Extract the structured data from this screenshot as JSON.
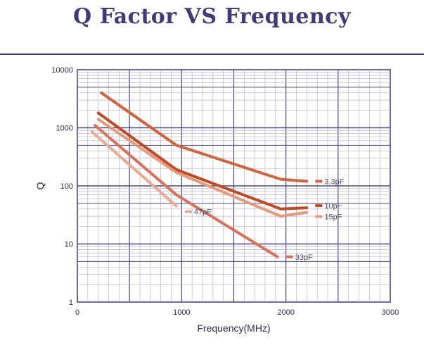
{
  "title": "Q Factor VS Frequency",
  "colors": {
    "title": "#3f3a7a",
    "grid_major": "#4a4590",
    "grid_minor": "#b3b0d6"
  },
  "chart_data": {
    "type": "line",
    "xlabel": "Frequency(MHz)",
    "ylabel": "Q",
    "x_scale": "linear",
    "y_scale": "log",
    "xlim": [
      0,
      3000
    ],
    "ylim": [
      1,
      10000
    ],
    "x_ticks": [
      "0",
      "1000",
      "2000",
      "3000"
    ],
    "y_ticks": [
      "1",
      "10",
      "100",
      "1000",
      "10000"
    ],
    "grid": true,
    "series": [
      {
        "name": "3.3pF",
        "color": "#d2643a",
        "x": [
          230,
          950,
          1950,
          2200
        ],
        "y": [
          4000,
          500,
          130,
          120
        ]
      },
      {
        "name": "10pF",
        "color": "#c24a22",
        "x": [
          200,
          950,
          1950,
          2200
        ],
        "y": [
          1800,
          190,
          40,
          42
        ]
      },
      {
        "name": "15pF",
        "color": "#e69a7a",
        "x": [
          200,
          950,
          1950,
          2200
        ],
        "y": [
          1400,
          170,
          30,
          35
        ]
      },
      {
        "name": "33pF",
        "color": "#d8735a",
        "x": [
          170,
          950,
          1920
        ],
        "y": [
          1100,
          70,
          6
        ]
      },
      {
        "name": "47pF",
        "color": "#eaa990",
        "x": [
          140,
          950
        ],
        "y": [
          850,
          45
        ]
      }
    ]
  }
}
